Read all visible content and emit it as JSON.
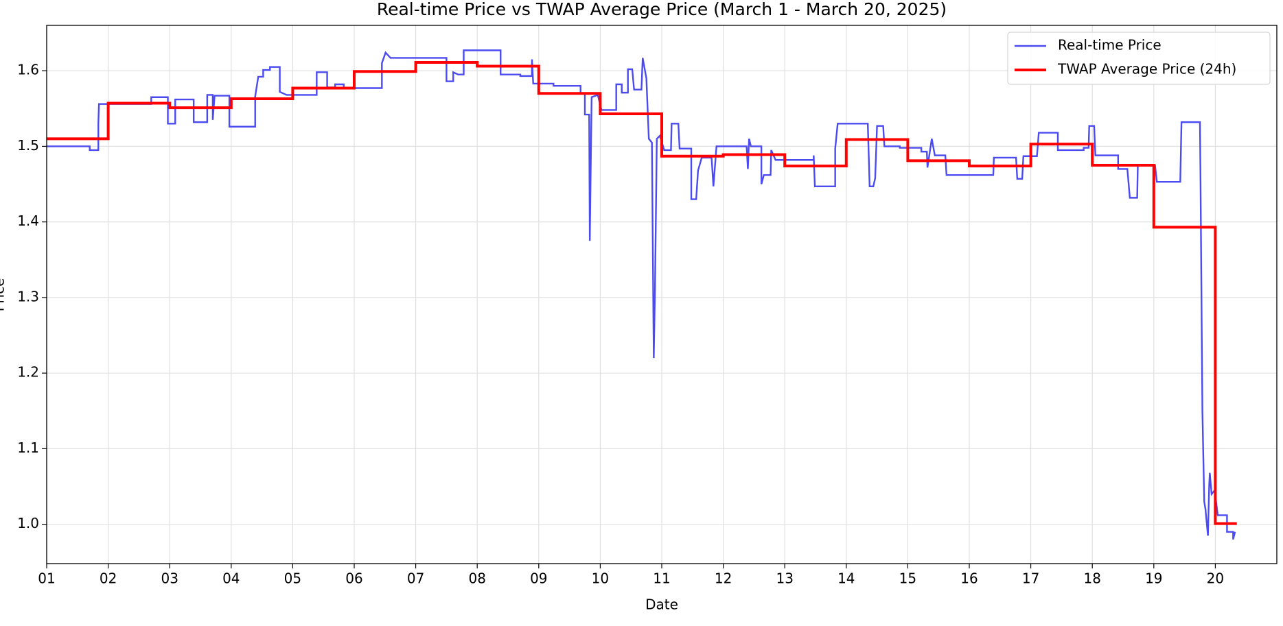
{
  "chart_data": {
    "type": "line",
    "title": "Real-time Price vs TWAP Average Price (March 1 - March 20, 2025)",
    "x_label": "Date",
    "y_label": "Price",
    "xlim": [
      1,
      21
    ],
    "xticks": [
      {
        "value": 1,
        "label": "01"
      },
      {
        "value": 2,
        "label": "02"
      },
      {
        "value": 3,
        "label": "03"
      },
      {
        "value": 4,
        "label": "04"
      },
      {
        "value": 5,
        "label": "05"
      },
      {
        "value": 6,
        "label": "06"
      },
      {
        "value": 7,
        "label": "07"
      },
      {
        "value": 8,
        "label": "08"
      },
      {
        "value": 9,
        "label": "09"
      },
      {
        "value": 10,
        "label": "10"
      },
      {
        "value": 11,
        "label": "11"
      },
      {
        "value": 12,
        "label": "12"
      },
      {
        "value": 13,
        "label": "13"
      },
      {
        "value": 14,
        "label": "14"
      },
      {
        "value": 15,
        "label": "15"
      },
      {
        "value": 16,
        "label": "16"
      },
      {
        "value": 17,
        "label": "17"
      },
      {
        "value": 18,
        "label": "18"
      },
      {
        "value": 19,
        "label": "19"
      },
      {
        "value": 20,
        "label": "20"
      }
    ],
    "ylim": [
      0.948,
      1.66
    ],
    "yticks": [
      {
        "value": 1,
        "label": "1.0"
      },
      1.1,
      1.2,
      1.3,
      1.4,
      1.5,
      1.6
    ],
    "grid": true,
    "legend": "upper right",
    "series": [
      {
        "name": "Real-time Price",
        "color": "#4b4bf0",
        "width": 2.4,
        "x": [
          1.0,
          1.7,
          1.7,
          1.84,
          1.84,
          1.85,
          2.7,
          2.7,
          2.97,
          2.97,
          3.09,
          3.09,
          3.39,
          3.39,
          3.61,
          3.61,
          3.7,
          3.7,
          3.73,
          3.97,
          3.97,
          4.39,
          4.39,
          4.44,
          4.52,
          4.52,
          4.63,
          4.63,
          4.79,
          4.79,
          4.9,
          5.39,
          5.39,
          5.56,
          5.56,
          5.69,
          5.69,
          5.83,
          5.83,
          6.45,
          6.45,
          6.51,
          6.59,
          7.5,
          7.5,
          7.61,
          7.61,
          7.69,
          7.78,
          7.78,
          8.38,
          8.38,
          8.7,
          8.7,
          8.89,
          8.89,
          8.91,
          9.24,
          9.24,
          9.68,
          9.68,
          9.75,
          9.75,
          9.82,
          9.83,
          9.86,
          9.96,
          10.02,
          10.26,
          10.26,
          10.35,
          10.35,
          10.45,
          10.45,
          10.52,
          10.55,
          10.67,
          10.69,
          10.75,
          10.79,
          10.84,
          10.87,
          10.89,
          10.92,
          10.97,
          11.04,
          11.15,
          11.16,
          11.27,
          11.29,
          11.48,
          11.48,
          11.56,
          11.59,
          11.65,
          11.81,
          11.84,
          11.89,
          12.38,
          12.4,
          12.42,
          12.45,
          12.62,
          12.62,
          12.66,
          12.77,
          12.78,
          12.85,
          13.47,
          13.47,
          13.49,
          13.82,
          13.82,
          13.86,
          14.35,
          14.38,
          14.44,
          14.47,
          14.5,
          14.6,
          14.62,
          14.87,
          14.87,
          15.22,
          15.22,
          15.31,
          15.32,
          15.39,
          15.44,
          15.61,
          15.63,
          16.39,
          16.4,
          16.76,
          16.78,
          16.86,
          16.88,
          17.1,
          17.13,
          17.44,
          17.44,
          17.86,
          17.86,
          17.94,
          17.95,
          18.03,
          18.05,
          18.42,
          18.42,
          18.57,
          18.61,
          18.73,
          18.74,
          19.02,
          19.05,
          19.43,
          19.45,
          19.75,
          19.76,
          19.79,
          19.82,
          19.84,
          19.88,
          19.9,
          19.91,
          19.94,
          19.99,
          20.04,
          20.19,
          20.19,
          20.29,
          20.29,
          20.32
        ],
        "values": [
          1.5,
          1.5,
          1.495,
          1.495,
          1.53,
          1.556,
          1.556,
          1.565,
          1.565,
          1.53,
          1.53,
          1.562,
          1.562,
          1.532,
          1.532,
          1.568,
          1.568,
          1.535,
          1.567,
          1.567,
          1.526,
          1.526,
          1.566,
          1.592,
          1.592,
          1.601,
          1.601,
          1.605,
          1.605,
          1.572,
          1.568,
          1.568,
          1.598,
          1.598,
          1.578,
          1.578,
          1.582,
          1.582,
          1.577,
          1.577,
          1.61,
          1.624,
          1.617,
          1.617,
          1.586,
          1.586,
          1.598,
          1.595,
          1.595,
          1.627,
          1.627,
          1.595,
          1.595,
          1.593,
          1.593,
          1.615,
          1.583,
          1.583,
          1.58,
          1.58,
          1.57,
          1.57,
          1.542,
          1.542,
          1.375,
          1.565,
          1.568,
          1.548,
          1.548,
          1.582,
          1.582,
          1.571,
          1.571,
          1.602,
          1.602,
          1.575,
          1.575,
          1.617,
          1.59,
          1.51,
          1.505,
          1.22,
          1.31,
          1.51,
          1.514,
          1.495,
          1.495,
          1.53,
          1.53,
          1.497,
          1.497,
          1.43,
          1.43,
          1.468,
          1.485,
          1.485,
          1.447,
          1.5,
          1.5,
          1.47,
          1.51,
          1.5,
          1.5,
          1.45,
          1.462,
          1.462,
          1.495,
          1.482,
          1.482,
          1.488,
          1.447,
          1.447,
          1.497,
          1.53,
          1.53,
          1.447,
          1.447,
          1.458,
          1.527,
          1.527,
          1.5,
          1.5,
          1.498,
          1.498,
          1.493,
          1.493,
          1.472,
          1.51,
          1.488,
          1.488,
          1.462,
          1.462,
          1.485,
          1.485,
          1.457,
          1.457,
          1.487,
          1.487,
          1.518,
          1.518,
          1.495,
          1.495,
          1.498,
          1.498,
          1.527,
          1.527,
          1.488,
          1.488,
          1.47,
          1.47,
          1.432,
          1.432,
          1.475,
          1.475,
          1.453,
          1.453,
          1.532,
          1.532,
          1.45,
          1.15,
          1.03,
          1.02,
          0.985,
          1.05,
          1.068,
          1.04,
          1.045,
          1.012,
          1.012,
          0.99,
          0.99,
          0.98,
          0.99
        ]
      },
      {
        "name": "TWAP Average Price (24h)",
        "color": "#ff0000",
        "width": 4,
        "x": [
          1,
          2,
          2,
          3,
          3,
          4,
          4,
          5,
          5,
          6,
          6,
          7,
          7,
          8,
          8,
          9,
          9,
          10,
          10,
          11,
          11,
          12,
          12,
          13,
          13,
          14,
          14,
          15,
          15,
          16,
          16,
          17,
          17,
          18,
          18,
          19,
          19,
          20,
          20,
          20.35
        ],
        "values": [
          1.51,
          1.51,
          1.557,
          1.557,
          1.551,
          1.551,
          1.563,
          1.563,
          1.577,
          1.577,
          1.599,
          1.599,
          1.611,
          1.611,
          1.606,
          1.606,
          1.57,
          1.57,
          1.543,
          1.543,
          1.487,
          1.487,
          1.489,
          1.489,
          1.474,
          1.474,
          1.509,
          1.509,
          1.481,
          1.481,
          1.474,
          1.474,
          1.503,
          1.503,
          1.475,
          1.475,
          1.393,
          1.393,
          1.001,
          1.001
        ]
      }
    ]
  }
}
